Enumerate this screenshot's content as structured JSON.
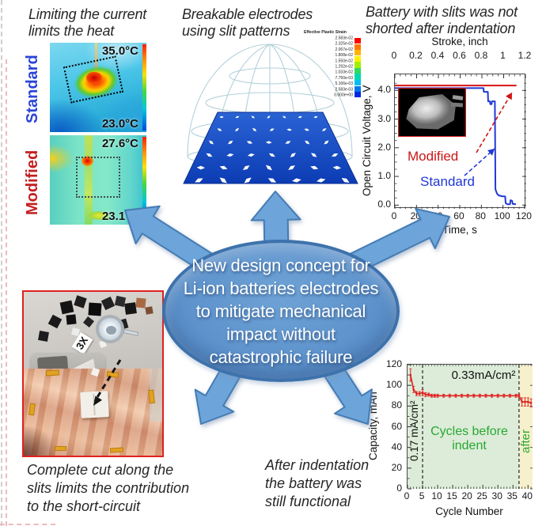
{
  "colors": {
    "arrow_blue": "#6da4d9",
    "ellipse_fill": "#5e93cc",
    "standard_blue": "#2b45d8",
    "modified_red": "#c32020",
    "caption_gray": "#262626",
    "region_green_text": "#28a832"
  },
  "thermal_panel": {
    "title_line1": "Limiting the current",
    "title_line2": "limits the heat",
    "standard": {
      "label": "Standard",
      "t_max": "35.0°C",
      "t_min": "23.0°C"
    },
    "modified": {
      "label": "Modified",
      "t_max": "27.6°C",
      "t_min": "23.1°C"
    }
  },
  "dome_panel": {
    "title_line1": "Breakable electrodes",
    "title_line2": "using slit patterns",
    "legend": {
      "title": "Effective Plastic Strain",
      "values": [
        "2.583e-02",
        "2.325e-02",
        "2.067e-02",
        "1.808e-02",
        "1.550e-02",
        "1.292e-02",
        "1.033e-02",
        "7.750e-03",
        "5.166e-03",
        "2.583e-03",
        "0.000e+00"
      ],
      "band_colors": [
        "#ff0000",
        "#ff7800",
        "#ffb400",
        "#fff000",
        "#a0f000",
        "#30d860",
        "#00d8b0",
        "#00c0f0",
        "#0078f0",
        "#0028e0"
      ]
    }
  },
  "ocv_panel": {
    "title_line1": "Battery with slits was not",
    "title_line2": "shorted after indentation",
    "modified_label": "Modified",
    "standard_label": "Standard"
  },
  "photo_panel": {
    "magnifier_label": "3X",
    "caption_line1": "Complete cut along the",
    "caption_line2": "slits limits the contribution",
    "caption_line3": "to the short-circuit"
  },
  "capacity_panel": {
    "caption_line1": "After indentation",
    "caption_line2": "the battery was",
    "caption_line3": "still functional",
    "rate1": "0.17 mA/cm²",
    "rate2": "0.33mA/cm²",
    "region1_line1": "Cycles before",
    "region1_line2": "indent",
    "region2": "after"
  },
  "center": {
    "lines": [
      "New design concept for",
      "Li-ion batteries electrodes",
      "to mitigate mechanical",
      "impact without",
      "catastrophic failure"
    ]
  },
  "chart_data": [
    {
      "type": "line",
      "title": "Battery with slits was not shorted after indentation",
      "top_axis": {
        "label": "Stroke, inch",
        "ticks": [
          0,
          0.2,
          0.4,
          0.6,
          0.8,
          1,
          1.2
        ],
        "tick_labels": [
          "0",
          "0.2",
          "0.4",
          "0.6",
          "0.8",
          "1",
          "1.2"
        ],
        "range": [
          0,
          1.2
        ]
      },
      "x_axis": {
        "label": "Time, s",
        "ticks": [
          0,
          20,
          40,
          60,
          80,
          100,
          120
        ],
        "range": [
          0,
          121.5
        ]
      },
      "y_axis": {
        "label": "Open Circuit Voltage, V",
        "ticks": [
          0,
          1,
          2,
          3,
          4
        ],
        "tick_labels": [
          "0.0",
          "1.0",
          "2.0",
          "3.0",
          "4.0"
        ],
        "range": [
          -0.13,
          4.56
        ]
      },
      "series": [
        {
          "name": "Modified",
          "color": "#d81414",
          "points": [
            [
              0,
              4.17
            ],
            [
              112.5,
              4.17
            ]
          ]
        },
        {
          "name": "Standard",
          "color": "#2038d8",
          "points": [
            [
              0,
              4.08
            ],
            [
              82,
              4.08
            ],
            [
              82.3,
              3.95
            ],
            [
              86,
              3.95
            ],
            [
              86.3,
              3.62
            ],
            [
              88,
              3.62
            ],
            [
              88.3,
              3.52
            ],
            [
              89.5,
              3.52
            ],
            [
              89.8,
              3.62
            ],
            [
              92.5,
              3.62
            ],
            [
              93,
              0.55
            ],
            [
              94.5,
              0.4
            ],
            [
              96,
              0.34
            ],
            [
              99,
              0.31
            ],
            [
              102,
              0.3
            ],
            [
              102.5,
              0.07
            ],
            [
              104,
              0.03
            ],
            [
              106.5,
              0.03
            ],
            [
              107,
              0.17
            ],
            [
              108.5,
              0.15
            ],
            [
              109,
              0.04
            ],
            [
              112,
              0.03
            ]
          ]
        }
      ]
    },
    {
      "type": "line",
      "x_axis": {
        "label": "Cycle Number",
        "ticks": [
          0,
          5,
          10,
          15,
          20,
          25,
          30,
          35,
          40
        ],
        "range": [
          0,
          41.5
        ]
      },
      "y_axis": {
        "label": "Capacity, mAh",
        "ticks": [
          0,
          20,
          40,
          60,
          80,
          100,
          120
        ],
        "range": [
          0,
          120
        ]
      },
      "regions": [
        {
          "from": 0,
          "to": 37,
          "color": "#dcecd8",
          "label": "Cycles before indent"
        },
        {
          "from": 37,
          "to": 41.5,
          "color": "#f6f1cc",
          "label": "after"
        }
      ],
      "vlines": [
        5,
        37
      ],
      "annotations": [
        "0.17 mA/cm²",
        "0.33mA/cm²"
      ],
      "series": [
        {
          "name": "Capacity",
          "color": "#e02020",
          "points": [
            [
              1,
              110,
              6
            ],
            [
              2,
              96,
              3
            ],
            [
              3,
              92,
              2
            ],
            [
              4,
              92,
              2
            ],
            [
              5,
              93,
              3
            ],
            [
              6,
              91,
              2
            ],
            [
              7,
              91,
              1.5
            ],
            [
              8,
              90,
              1.5
            ],
            [
              9,
              90,
              1.5
            ],
            [
              10,
              90,
              1.5
            ],
            [
              12,
              90,
              1.5
            ],
            [
              14,
              90,
              1.5
            ],
            [
              16,
              90,
              1.5
            ],
            [
              18,
              90,
              1.5
            ],
            [
              20,
              90,
              1.5
            ],
            [
              22,
              90,
              1.5
            ],
            [
              24,
              90,
              1.5
            ],
            [
              26,
              90,
              1.5
            ],
            [
              28,
              90,
              1.5
            ],
            [
              30,
              90,
              1.5
            ],
            [
              32,
              90,
              1.5
            ],
            [
              34,
              90,
              1.5
            ],
            [
              36,
              90,
              1.5
            ],
            [
              37,
              90,
              1.5
            ],
            [
              38,
              84,
              4
            ],
            [
              39,
              84,
              4
            ],
            [
              40,
              84,
              4
            ],
            [
              41,
              83,
              4
            ]
          ]
        }
      ]
    }
  ]
}
